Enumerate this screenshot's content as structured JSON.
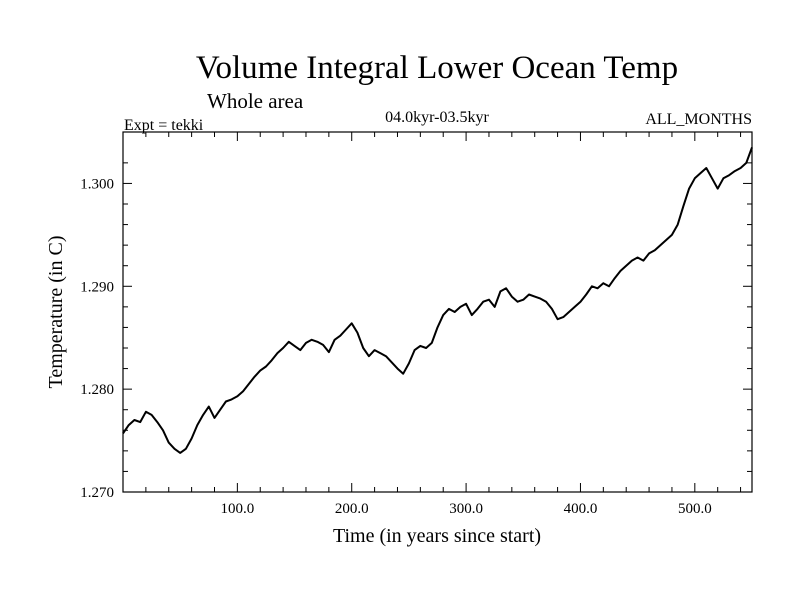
{
  "chart_data": {
    "type": "line",
    "title": "Volume Integral Lower Ocean Temp",
    "subtitle": "Whole area",
    "experiment_label": "Expt = tekki",
    "period_label": "04.0kyr-03.5kyr",
    "months_label": "ALL_MONTHS",
    "xlabel": "Time (in years since start)",
    "ylabel": "Temperature (in C)",
    "xlim": [
      0,
      550
    ],
    "ylim": [
      1.27,
      1.305
    ],
    "x_ticks": [
      100,
      200,
      300,
      400,
      500
    ],
    "x_tick_labels": [
      "100.0",
      "200.0",
      "300.0",
      "400.0",
      "500.0"
    ],
    "y_ticks": [
      1.27,
      1.28,
      1.29,
      1.3
    ],
    "y_tick_labels": [
      "1.270",
      "1.280",
      "1.290",
      "1.300"
    ],
    "grid": false,
    "series": [
      {
        "name": "Volume Integral Lower Ocean Temp",
        "x": [
          0,
          5,
          10,
          15,
          20,
          25,
          30,
          35,
          40,
          45,
          50,
          55,
          60,
          65,
          70,
          75,
          80,
          85,
          90,
          95,
          100,
          105,
          110,
          115,
          120,
          125,
          130,
          135,
          140,
          145,
          150,
          155,
          160,
          165,
          170,
          175,
          180,
          185,
          190,
          195,
          200,
          205,
          210,
          215,
          220,
          225,
          230,
          235,
          240,
          245,
          250,
          255,
          260,
          265,
          270,
          275,
          280,
          285,
          290,
          295,
          300,
          305,
          310,
          315,
          320,
          325,
          330,
          335,
          340,
          345,
          350,
          355,
          360,
          365,
          370,
          375,
          380,
          385,
          390,
          395,
          400,
          405,
          410,
          415,
          420,
          425,
          430,
          435,
          440,
          445,
          450,
          455,
          460,
          465,
          470,
          475,
          480,
          485,
          490,
          495,
          500,
          505,
          510,
          515,
          520,
          525,
          530,
          535,
          540,
          545,
          550
        ],
        "values": [
          1.2757,
          1.2765,
          1.277,
          1.2768,
          1.2778,
          1.2775,
          1.2768,
          1.276,
          1.2748,
          1.2742,
          1.2738,
          1.2742,
          1.2752,
          1.2765,
          1.2775,
          1.2783,
          1.2772,
          1.278,
          1.2788,
          1.279,
          1.2793,
          1.2798,
          1.2805,
          1.2812,
          1.2818,
          1.2822,
          1.2828,
          1.2835,
          1.284,
          1.2846,
          1.2842,
          1.2838,
          1.2845,
          1.2848,
          1.2846,
          1.2843,
          1.2836,
          1.2848,
          1.2852,
          1.2858,
          1.2864,
          1.2855,
          1.284,
          1.2832,
          1.2838,
          1.2835,
          1.2832,
          1.2826,
          1.282,
          1.2815,
          1.2825,
          1.2838,
          1.2842,
          1.284,
          1.2845,
          1.286,
          1.2872,
          1.2878,
          1.2875,
          1.288,
          1.2883,
          1.2872,
          1.2878,
          1.2885,
          1.2887,
          1.288,
          1.2895,
          1.2898,
          1.289,
          1.2885,
          1.2887,
          1.2892,
          1.289,
          1.2888,
          1.2885,
          1.2878,
          1.2868,
          1.287,
          1.2875,
          1.288,
          1.2885,
          1.2892,
          1.29,
          1.2898,
          1.2903,
          1.29,
          1.2908,
          1.2915,
          1.292,
          1.2925,
          1.2928,
          1.2925,
          1.2932,
          1.2935,
          1.294,
          1.2945,
          1.295,
          1.296,
          1.2978,
          1.2995,
          1.3005,
          1.301,
          1.3015,
          1.3005,
          1.2995,
          1.3005,
          1.3008,
          1.3012,
          1.3015,
          1.302,
          1.3035
        ]
      }
    ]
  }
}
